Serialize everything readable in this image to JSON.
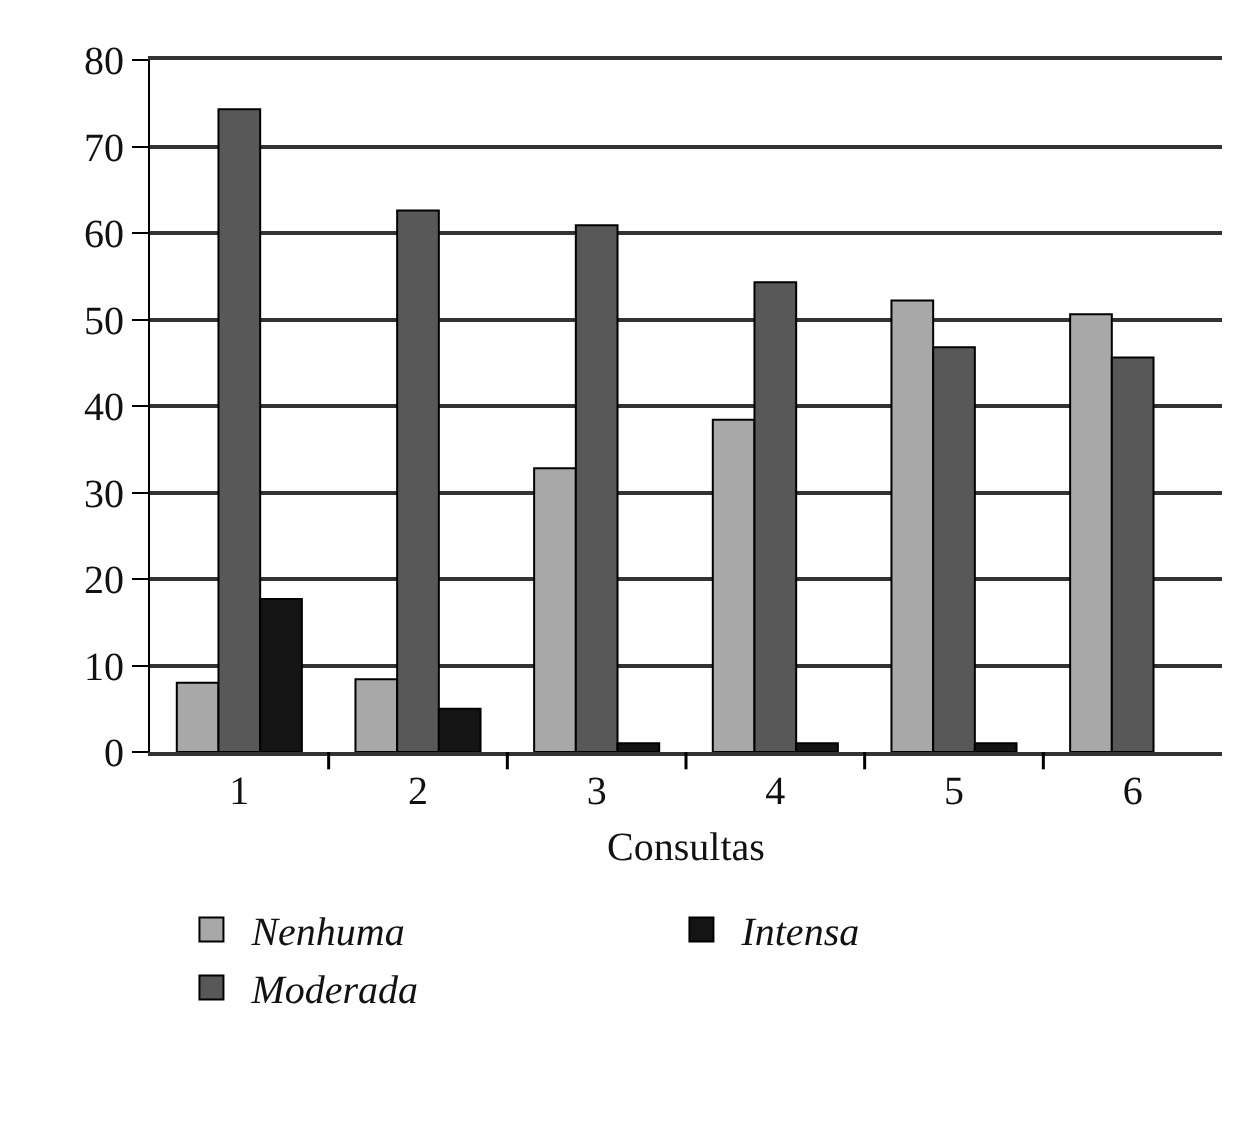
{
  "chart_data": {
    "type": "bar",
    "xlabel": "Consultas",
    "categories": [
      "1",
      "2",
      "3",
      "4",
      "5",
      "6"
    ],
    "series": [
      {
        "name": "Nenhuma",
        "color": "#a8a8a8",
        "values": [
          8,
          8.4,
          32.8,
          38.4,
          52.2,
          50.6
        ]
      },
      {
        "name": "Moderada",
        "color": "#585858",
        "values": [
          74.3,
          62.6,
          60.9,
          54.3,
          46.8,
          45.6
        ]
      },
      {
        "name": "Intensa",
        "color": "#141414",
        "values": [
          17.7,
          5,
          1,
          1,
          1,
          null
        ]
      }
    ],
    "ylim": [
      0,
      80
    ],
    "yticks": [
      0,
      10,
      20,
      30,
      40,
      50,
      60,
      70,
      80
    ],
    "grid": "y",
    "legend": "bottom"
  }
}
